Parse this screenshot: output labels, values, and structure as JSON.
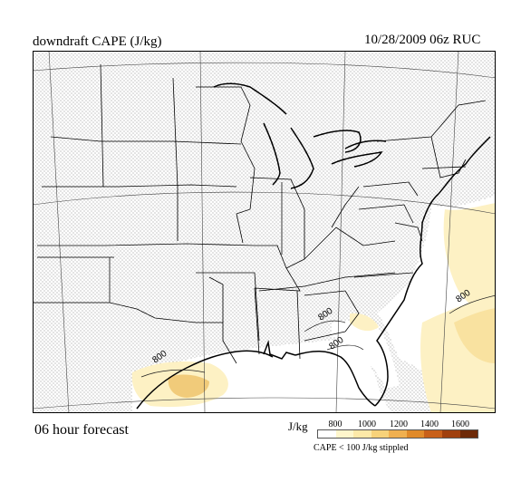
{
  "header": {
    "title": "downdraft CAPE (J/kg)",
    "valid": "10/28/2009  06z  RUC"
  },
  "footer": {
    "forecast": "06 hour forecast",
    "legend_unit": "J/kg",
    "legend_note": "CAPE < 100 J/kg stippled",
    "legend_ticks": [
      "800",
      "1000",
      "1200",
      "1400",
      "1600"
    ],
    "legend_colors": [
      "#ffffff",
      "#fff6cc",
      "#fde9a8",
      "#f7d27a",
      "#f0b050",
      "#e08a2a",
      "#c8601a",
      "#a0400e",
      "#6e2a08"
    ]
  },
  "map": {
    "contour_labels": [
      "800",
      "800",
      "800",
      "800"
    ],
    "colors": {
      "stipple": "#8a8a8a",
      "land_clear": "#ffffff",
      "cape_low": "#fdf1c4",
      "cape_mid": "#f9e2a0",
      "cape_high": "#f1cb7a",
      "border": "#000000"
    }
  }
}
